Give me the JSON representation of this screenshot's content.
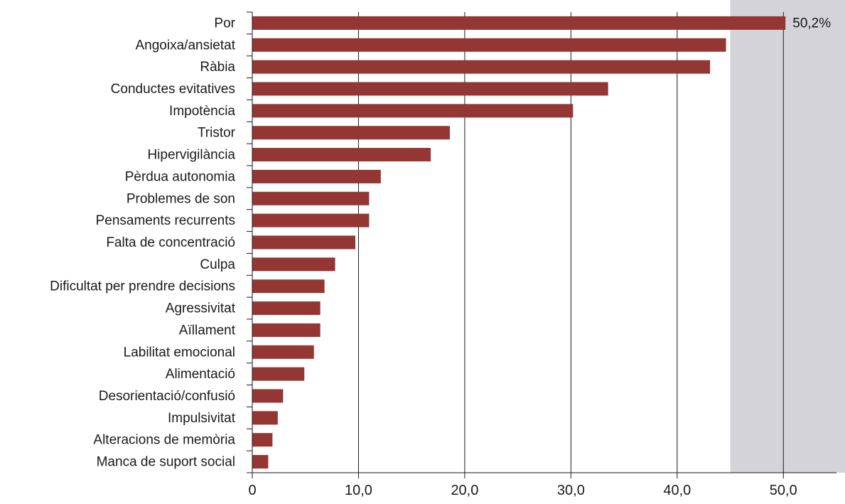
{
  "chart_data": {
    "type": "bar",
    "orientation": "horizontal",
    "title": "",
    "xlabel": "",
    "ylabel": "",
    "categories": [
      "Por",
      "Angoixa/ansietat",
      "Ràbia",
      "Conductes evitatives",
      "Impotència",
      "Tristor",
      "Hipervigilància",
      "Pèrdua autonomia",
      "Problemes de son",
      "Pensaments recurrents",
      "Falta de concentració",
      "Culpa",
      "Dificultat per prendre decisions",
      "Agressivitat",
      "Aïllament",
      "Labilitat emocional",
      "Alimentació",
      "Desorientació/confusió",
      "Impulsivitat",
      "Alteracions de memòria",
      "Manca de suport social"
    ],
    "values": [
      50.2,
      44.6,
      43.1,
      33.5,
      30.2,
      18.6,
      16.8,
      12.1,
      11.0,
      11.0,
      9.7,
      7.8,
      6.8,
      6.4,
      6.4,
      5.8,
      4.9,
      2.9,
      2.4,
      1.9,
      1.5
    ],
    "data_label": "50,2%",
    "xlim": [
      0,
      55
    ],
    "x_ticks": [
      0,
      10,
      20,
      30,
      40,
      50
    ],
    "x_tick_labels": [
      "0",
      "10,0",
      "20,0",
      "30,0",
      "40,0",
      "50,0"
    ],
    "shaded_x_range": [
      45,
      55
    ],
    "grid": true,
    "bar_color": "#943634",
    "shade_color": "#d4d4d8",
    "grid_color": "#1a1a1a"
  }
}
